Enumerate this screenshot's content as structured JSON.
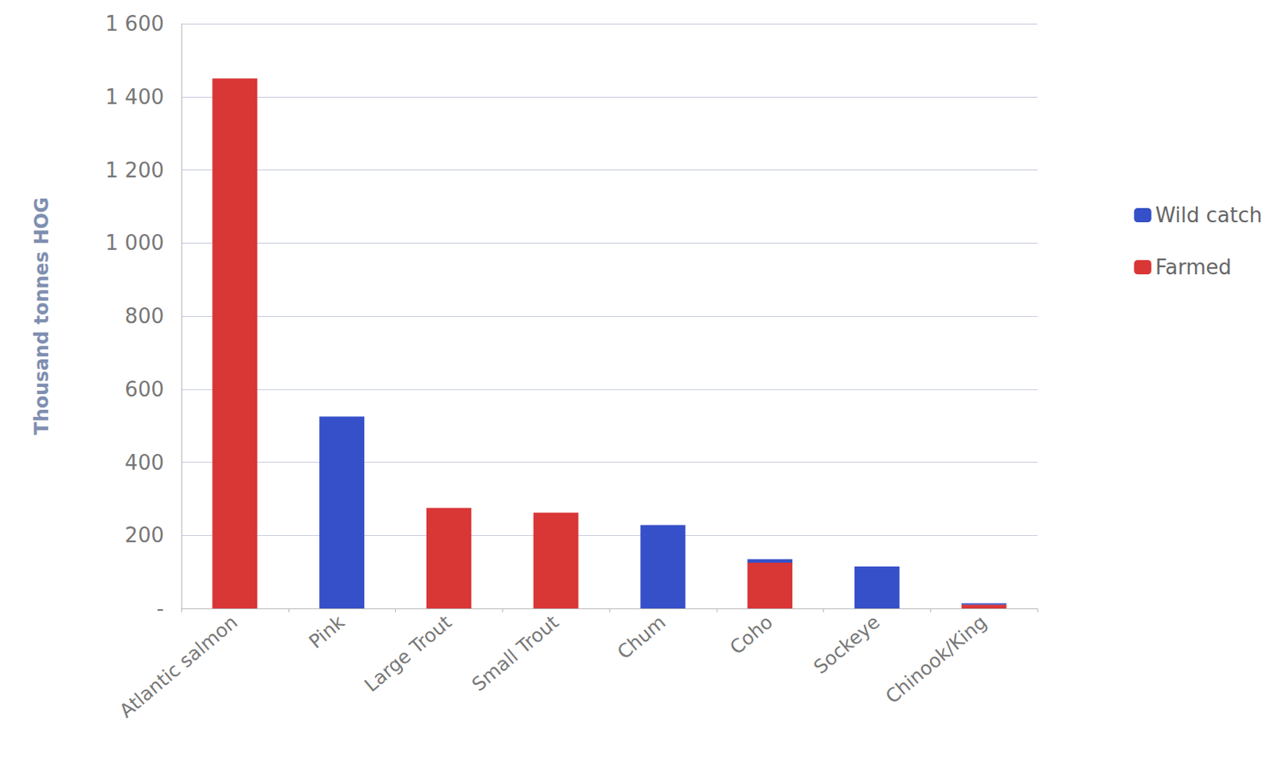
{
  "chart_data": {
    "type": "bar",
    "y_label": "Thousand tonnes HOG",
    "categories": [
      "Atlantic salmon",
      "Pink",
      "Large Trout",
      "Small Trout",
      "Chum",
      "Coho",
      "Sockeye",
      "Chinook/King"
    ],
    "series": [
      {
        "name": "Wild catch",
        "color": "#3550c8",
        "values": [
          null,
          525,
          null,
          null,
          228,
          10,
          115,
          4
        ]
      },
      {
        "name": "Farmed",
        "color": "#d93636",
        "values": [
          1450,
          null,
          275,
          262,
          null,
          125,
          null,
          10
        ]
      }
    ],
    "stacked": true,
    "ylim": [
      0,
      1600
    ],
    "yticks": [
      {
        "value": 0,
        "label": "-"
      },
      {
        "value": 200,
        "label": "200"
      },
      {
        "value": 400,
        "label": "400"
      },
      {
        "value": 600,
        "label": "600"
      },
      {
        "value": 800,
        "label": "800"
      },
      {
        "value": 1000,
        "label": "1 000"
      },
      {
        "value": 1200,
        "label": "1 200"
      },
      {
        "value": 1400,
        "label": "1 400"
      },
      {
        "value": 1600,
        "label": "1 600"
      }
    ],
    "grid": true,
    "legend": "right"
  }
}
